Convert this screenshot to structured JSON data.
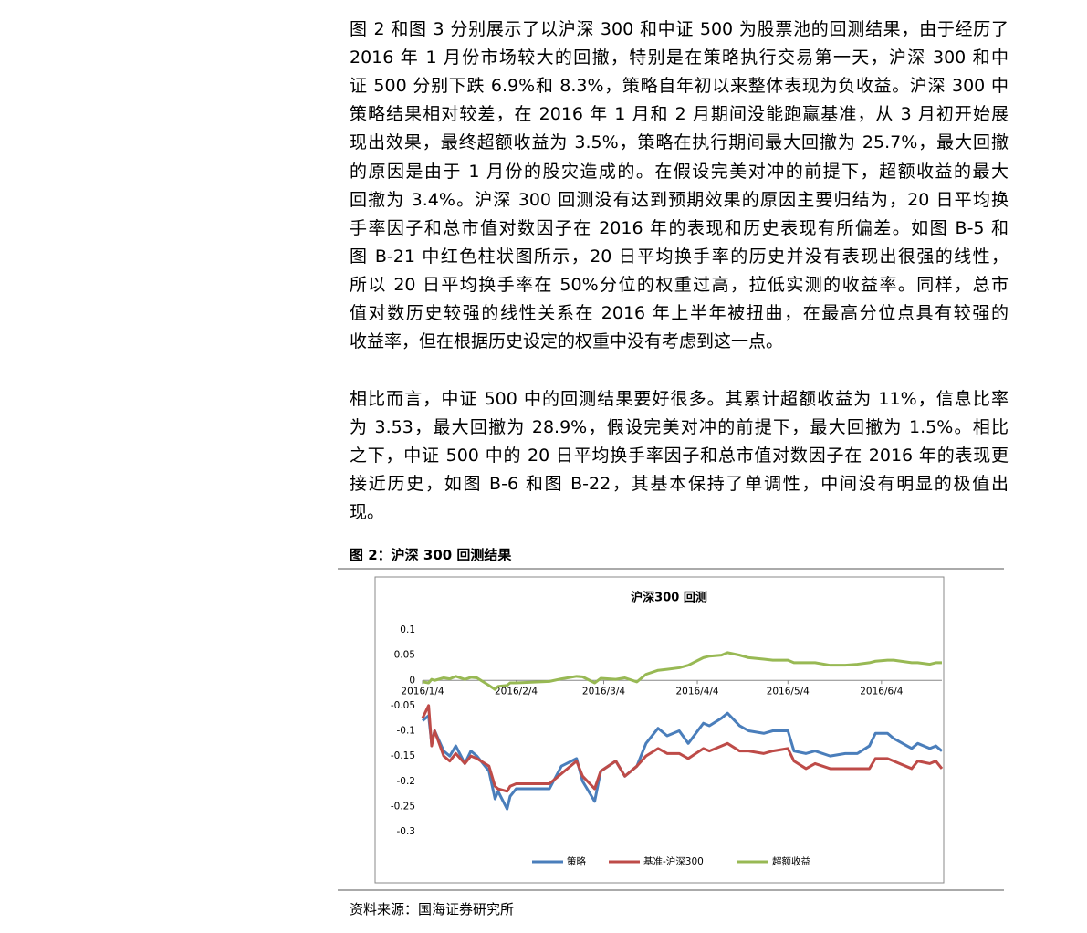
{
  "body": {
    "paragraphs": [
      {
        "lines": [
          "图 2 和图 3 分别展示了以沪深 300 和中证 500 为股票池的回测结果，由于经历了",
          "2016 年 1 月份市场较大的回撤，特别是在策略执行交易第一天，沪深 300 和中",
          "证 500 分别下跌 6.9%和 8.3%，策略自年初以来整体表现为负收益。沪深 300 中",
          "策略结果相对较差，在 2016 年 1 月和 2 月期间没能跑赢基准，从 3 月初开始展",
          "现出效果，最终超额收益为 3.5%，策略在执行期间最大回撤为 25.7%，最大回撤",
          "的原因是由于 1 月份的股灾造成的。在假设完美对冲的前提下，超额收益的最大",
          "回撤为 3.4%。沪深 300 回测没有达到预期效果的原因主要归结为，20 日平均换",
          "手率因子和总市值对数因子在 2016 年的表现和历史表现有所偏差。如图 B-5 和",
          "图 B-21 中红色柱状图所示，20 日平均换手率的历史并没有表现出很强的线性，",
          "所以 20 日平均换手率在 50%分位的权重过高，拉低实测的收益率。同样，总市",
          "值对数历史较强的线性关系在 2016 年上半年被扭曲，在最高分位点具有较强的",
          "收益率，但在根据历史设定的权重中没有考虑到这一点。"
        ]
      },
      {
        "lines": [
          "相比而言，中证 500 中的回测结果要好很多。其累计超额收益为 11%，信息比率",
          "为 3.53，最大回撤为 28.9%，假设完美对冲的前提下，最大回撤为 1.5%。相比",
          "之下，中证 500 中的 20 日平均换手率因子和总市值对数因子在 2016 年的表现更",
          "接近历史，如图 B-6 和图 B-22，其基本保持了单调性，中间没有明显的极值出",
          "现。"
        ]
      }
    ]
  },
  "figure": {
    "caption": "图 2：沪深 300 回测结果",
    "source": "资料来源：国海证券研究所"
  },
  "chart_data": {
    "type": "line",
    "title": "沪深300 回测",
    "x": [
      "2016/1/4",
      "2016/1/6",
      "2016/1/7",
      "2016/1/8",
      "2016/1/11",
      "2016/1/13",
      "2016/1/15",
      "2016/1/18",
      "2016/1/20",
      "2016/1/22",
      "2016/1/26",
      "2016/1/28",
      "2016/1/29",
      "2016/2/1",
      "2016/2/2",
      "2016/2/4",
      "2016/2/15",
      "2016/2/19",
      "2016/2/24",
      "2016/2/26",
      "2016/3/1",
      "2016/3/3",
      "2016/3/8",
      "2016/3/11",
      "2016/3/15",
      "2016/3/18",
      "2016/3/22",
      "2016/3/25",
      "2016/3/29",
      "2016/4/1",
      "2016/4/6",
      "2016/4/8",
      "2016/4/12",
      "2016/4/14",
      "2016/4/18",
      "2016/4/21",
      "2016/4/26",
      "2016/4/29",
      "2016/5/4",
      "2016/5/6",
      "2016/5/10",
      "2016/5/13",
      "2016/5/18",
      "2016/5/23",
      "2016/5/27",
      "2016/5/31",
      "2016/6/2",
      "2016/6/6",
      "2016/6/8",
      "2016/6/14",
      "2016/6/16",
      "2016/6/20",
      "2016/6/22",
      "2016/6/24"
    ],
    "series": [
      {
        "name": "策略",
        "color": "#4a7ebb",
        "values": [
          -0.08,
          -0.07,
          -0.125,
          -0.1,
          -0.14,
          -0.15,
          -0.13,
          -0.165,
          -0.14,
          -0.15,
          -0.18,
          -0.235,
          -0.22,
          -0.255,
          -0.23,
          -0.215,
          -0.215,
          -0.17,
          -0.155,
          -0.2,
          -0.24,
          -0.18,
          -0.16,
          -0.19,
          -0.17,
          -0.125,
          -0.095,
          -0.11,
          -0.1,
          -0.125,
          -0.085,
          -0.09,
          -0.075,
          -0.065,
          -0.09,
          -0.1,
          -0.105,
          -0.1,
          -0.1,
          -0.14,
          -0.145,
          -0.14,
          -0.15,
          -0.145,
          -0.145,
          -0.13,
          -0.105,
          -0.105,
          -0.115,
          -0.135,
          -0.125,
          -0.135,
          -0.13,
          -0.14
        ]
      },
      {
        "name": "基准-沪深300",
        "color": "#be4b48",
        "values": [
          -0.075,
          -0.05,
          -0.13,
          -0.1,
          -0.15,
          -0.16,
          -0.145,
          -0.165,
          -0.15,
          -0.155,
          -0.17,
          -0.21,
          -0.215,
          -0.22,
          -0.21,
          -0.205,
          -0.205,
          -0.185,
          -0.16,
          -0.19,
          -0.215,
          -0.18,
          -0.16,
          -0.19,
          -0.17,
          -0.15,
          -0.135,
          -0.145,
          -0.145,
          -0.155,
          -0.135,
          -0.14,
          -0.13,
          -0.125,
          -0.14,
          -0.14,
          -0.145,
          -0.14,
          -0.135,
          -0.16,
          -0.175,
          -0.165,
          -0.175,
          -0.175,
          -0.175,
          -0.175,
          -0.155,
          -0.155,
          -0.16,
          -0.175,
          -0.16,
          -0.165,
          -0.16,
          -0.175
        ]
      },
      {
        "name": "超额收益",
        "color": "#98b954",
        "values": [
          -0.003,
          -0.005,
          0.002,
          0,
          0.005,
          0.003,
          0.008,
          0.002,
          0.006,
          0.005,
          -0.01,
          -0.018,
          -0.012,
          -0.01,
          -0.005,
          -0.005,
          -0.002,
          0.003,
          0.008,
          0.007,
          -0.005,
          0.004,
          0.002,
          0.005,
          -0.003,
          0.012,
          0.02,
          0.022,
          0.025,
          0.03,
          0.045,
          0.048,
          0.05,
          0.055,
          0.05,
          0.045,
          0.042,
          0.04,
          0.04,
          0.035,
          0.035,
          0.035,
          0.03,
          0.03,
          0.032,
          0.035,
          0.038,
          0.04,
          0.04,
          0.035,
          0.035,
          0.032,
          0.035,
          0.035
        ]
      }
    ],
    "xlim": [
      "2016/1/4",
      "2016/6/24"
    ],
    "xticks": [
      "2016/1/4",
      "2016/2/4",
      "2016/3/4",
      "2016/4/4",
      "2016/5/4",
      "2016/6/4"
    ],
    "ylim": [
      -0.3,
      0.1
    ],
    "yticks": [
      0.1,
      0.05,
      0,
      -0.05,
      -0.1,
      -0.15,
      -0.2,
      -0.25,
      -0.3
    ]
  }
}
